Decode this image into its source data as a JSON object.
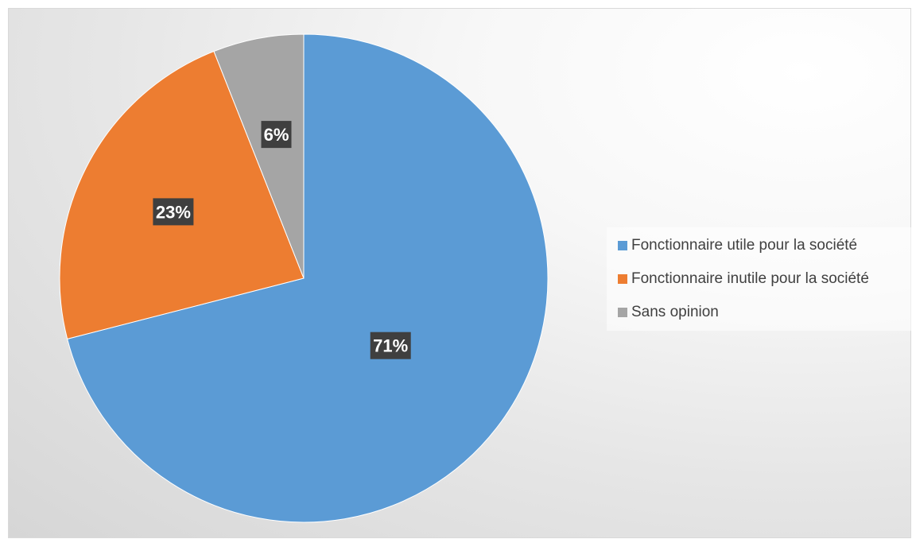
{
  "chart_data": {
    "type": "pie",
    "title": "",
    "categories": [
      "Fonctionnaire utile pour la société",
      "Fonctionnaire inutile pour la société",
      "Sans opinion"
    ],
    "values": [
      71,
      23,
      6
    ],
    "labels": [
      "71%",
      "23%",
      "6%"
    ],
    "colors": [
      "#5b9bd5",
      "#ed7d31",
      "#a5a5a5"
    ],
    "start_angle_deg": 0,
    "direction": "clockwise",
    "legend_position": "right"
  }
}
